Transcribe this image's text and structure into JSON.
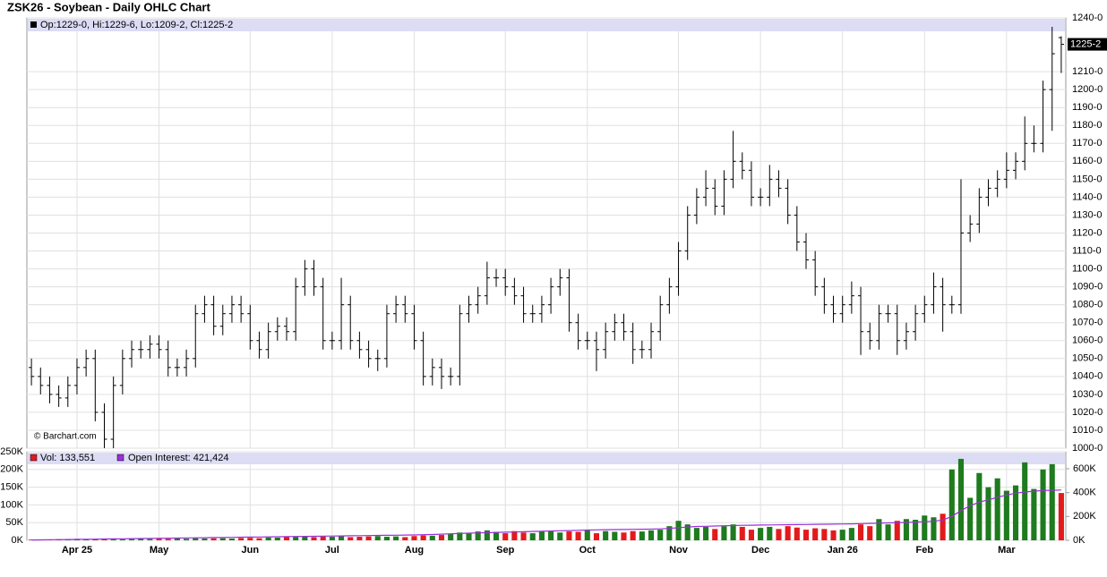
{
  "chart_data": {
    "type": "ohlc",
    "title": "ZSK26 - Soybean - Daily OHLC Chart",
    "info": "Op:1229-0, Hi:1229-6, Lo:1209-2, Cl:1225-2",
    "last_label": "1225-2",
    "watermark": "© Barchart.com",
    "xticks": [
      {
        "value": 5,
        "label": "Apr 25"
      },
      {
        "value": 14,
        "label": "May"
      },
      {
        "value": 24,
        "label": "Jun"
      },
      {
        "value": 33,
        "label": "Jul"
      },
      {
        "value": 42,
        "label": "Aug"
      },
      {
        "value": 52,
        "label": "Sep"
      },
      {
        "value": 61,
        "label": "Oct"
      },
      {
        "value": 71,
        "label": "Nov"
      },
      {
        "value": 80,
        "label": "Dec"
      },
      {
        "value": 89,
        "label": "Jan 26"
      },
      {
        "value": 98,
        "label": "Feb"
      },
      {
        "value": 107,
        "label": "Mar"
      }
    ],
    "price": {
      "color": "#000000",
      "ylim": [
        1000,
        1240
      ],
      "yticks": [
        {
          "value": 1000,
          "label": "1000-0"
        },
        {
          "value": 1010,
          "label": "1010-0"
        },
        {
          "value": 1020,
          "label": "1020-0"
        },
        {
          "value": 1030,
          "label": "1030-0"
        },
        {
          "value": 1040,
          "label": "1040-0"
        },
        {
          "value": 1050,
          "label": "1050-0"
        },
        {
          "value": 1060,
          "label": "1060-0"
        },
        {
          "value": 1070,
          "label": "1070-0"
        },
        {
          "value": 1080,
          "label": "1080-0"
        },
        {
          "value": 1090,
          "label": "1090-0"
        },
        {
          "value": 1100,
          "label": "1100-0"
        },
        {
          "value": 1110,
          "label": "1110-0"
        },
        {
          "value": 1120,
          "label": "1120-0"
        },
        {
          "value": 1130,
          "label": "1130-0"
        },
        {
          "value": 1140,
          "label": "1140-0"
        },
        {
          "value": 1150,
          "label": "1150-0"
        },
        {
          "value": 1160,
          "label": "1160-0"
        },
        {
          "value": 1170,
          "label": "1170-0"
        },
        {
          "value": 1180,
          "label": "1180-0"
        },
        {
          "value": 1190,
          "label": "1190-0"
        },
        {
          "value": 1200,
          "label": "1200-0"
        },
        {
          "value": 1210,
          "label": "1210-0"
        },
        {
          "value": 1240,
          "label": "1240-0"
        }
      ],
      "open": [
        1045,
        1040,
        1035,
        1030,
        1028,
        1035,
        1045,
        1050,
        1020,
        1005,
        1035,
        1050,
        1055,
        1055,
        1058,
        1055,
        1045,
        1045,
        1050,
        1075,
        1080,
        1068,
        1075,
        1080,
        1075,
        1060,
        1055,
        1065,
        1068,
        1065,
        1090,
        1100,
        1090,
        1060,
        1060,
        1080,
        1060,
        1055,
        1050,
        1050,
        1075,
        1080,
        1075,
        1060,
        1040,
        1045,
        1040,
        1040,
        1075,
        1080,
        1085,
        1095,
        1095,
        1090,
        1085,
        1075,
        1075,
        1080,
        1090,
        1095,
        1070,
        1060,
        1060,
        1055,
        1065,
        1070,
        1065,
        1055,
        1055,
        1065,
        1080,
        1090,
        1110,
        1130,
        1140,
        1145,
        1135,
        1150,
        1160,
        1155,
        1140,
        1140,
        1150,
        1145,
        1130,
        1115,
        1105,
        1090,
        1080,
        1075,
        1080,
        1085,
        1065,
        1060,
        1075,
        1075,
        1060,
        1065,
        1075,
        1080,
        1090,
        1080,
        1080,
        1120,
        1125,
        1140,
        1145,
        1150,
        1155,
        1160,
        1170,
        1170,
        1200,
        1229
      ],
      "high": [
        1050,
        1045,
        1040,
        1035,
        1040,
        1050,
        1055,
        1055,
        1025,
        1040,
        1055,
        1060,
        1060,
        1063,
        1063,
        1060,
        1050,
        1055,
        1080,
        1085,
        1085,
        1080,
        1085,
        1085,
        1080,
        1065,
        1070,
        1073,
        1073,
        1095,
        1105,
        1105,
        1095,
        1065,
        1095,
        1085,
        1065,
        1060,
        1055,
        1080,
        1085,
        1085,
        1080,
        1065,
        1050,
        1050,
        1045,
        1080,
        1085,
        1090,
        1104,
        1100,
        1100,
        1095,
        1090,
        1080,
        1085,
        1095,
        1100,
        1100,
        1075,
        1065,
        1065,
        1070,
        1075,
        1075,
        1070,
        1060,
        1070,
        1085,
        1095,
        1115,
        1135,
        1145,
        1155,
        1150,
        1155,
        1177,
        1165,
        1160,
        1145,
        1158,
        1155,
        1150,
        1135,
        1120,
        1110,
        1095,
        1085,
        1085,
        1093,
        1090,
        1070,
        1080,
        1080,
        1080,
        1070,
        1080,
        1085,
        1098,
        1095,
        1085,
        1150,
        1130,
        1145,
        1150,
        1155,
        1165,
        1165,
        1185,
        1180,
        1205,
        1235,
        1229.75
      ],
      "low": [
        1035,
        1030,
        1025,
        1023,
        1023,
        1030,
        1040,
        1015,
        1000,
        1000,
        1030,
        1045,
        1050,
        1050,
        1050,
        1040,
        1040,
        1040,
        1045,
        1070,
        1063,
        1063,
        1070,
        1070,
        1055,
        1050,
        1050,
        1060,
        1060,
        1060,
        1085,
        1085,
        1055,
        1055,
        1055,
        1055,
        1050,
        1045,
        1043,
        1045,
        1070,
        1070,
        1055,
        1035,
        1035,
        1033,
        1035,
        1035,
        1070,
        1075,
        1080,
        1090,
        1085,
        1080,
        1070,
        1070,
        1070,
        1075,
        1085,
        1065,
        1055,
        1055,
        1043,
        1050,
        1060,
        1060,
        1047,
        1050,
        1050,
        1060,
        1075,
        1085,
        1105,
        1125,
        1135,
        1130,
        1130,
        1145,
        1150,
        1135,
        1135,
        1135,
        1140,
        1125,
        1110,
        1100,
        1085,
        1075,
        1070,
        1070,
        1075,
        1052,
        1055,
        1055,
        1070,
        1052,
        1055,
        1060,
        1070,
        1075,
        1065,
        1075,
        1075,
        1115,
        1120,
        1135,
        1140,
        1145,
        1150,
        1155,
        1165,
        1165,
        1177,
        1209.25
      ],
      "close": [
        1040,
        1035,
        1030,
        1028,
        1035,
        1045,
        1050,
        1020,
        1005,
        1035,
        1050,
        1055,
        1055,
        1058,
        1055,
        1045,
        1045,
        1050,
        1075,
        1080,
        1068,
        1075,
        1080,
        1075,
        1060,
        1055,
        1065,
        1068,
        1065,
        1090,
        1100,
        1090,
        1060,
        1060,
        1080,
        1060,
        1055,
        1050,
        1050,
        1075,
        1080,
        1075,
        1060,
        1040,
        1045,
        1040,
        1040,
        1075,
        1080,
        1085,
        1095,
        1095,
        1090,
        1085,
        1075,
        1075,
        1080,
        1090,
        1095,
        1070,
        1060,
        1060,
        1055,
        1065,
        1070,
        1065,
        1055,
        1055,
        1065,
        1080,
        1090,
        1110,
        1130,
        1140,
        1145,
        1135,
        1150,
        1160,
        1155,
        1140,
        1140,
        1150,
        1145,
        1130,
        1115,
        1105,
        1090,
        1080,
        1075,
        1080,
        1085,
        1065,
        1060,
        1075,
        1075,
        1060,
        1065,
        1075,
        1080,
        1090,
        1080,
        1080,
        1120,
        1125,
        1140,
        1145,
        1150,
        1155,
        1160,
        1170,
        1170,
        1200,
        1220,
        1225.25
      ]
    },
    "volume": {
      "name": "Vol: 133,551",
      "legend_color": "#e31a1c",
      "up_color": "#1e7b1e",
      "down_color": "#e31a1c",
      "ylim": [
        0,
        250000
      ],
      "yticks": [
        {
          "value": 0,
          "label": "0K"
        },
        {
          "value": 50000,
          "label": "50K"
        },
        {
          "value": 100000,
          "label": "100K"
        },
        {
          "value": 150000,
          "label": "150K"
        },
        {
          "value": 200000,
          "label": "200K"
        },
        {
          "value": 250000,
          "label": "250K"
        }
      ],
      "values": [
        2000,
        2500,
        2000,
        3000,
        2500,
        3000,
        3500,
        3000,
        4000,
        3500,
        3000,
        3500,
        4000,
        3500,
        4500,
        4000,
        5000,
        4500,
        6000,
        5000,
        5500,
        6000,
        5000,
        6500,
        7000,
        6000,
        8000,
        7500,
        9000,
        10000,
        12000,
        9000,
        11000,
        10000,
        12000,
        9000,
        10000,
        11000,
        12000,
        10000,
        11000,
        9000,
        12000,
        14000,
        13000,
        15000,
        18000,
        22000,
        20000,
        25000,
        28000,
        24000,
        20000,
        26000,
        22000,
        20000,
        24000,
        26000,
        22000,
        25000,
        24000,
        28000,
        20000,
        26000,
        24000,
        22000,
        26000,
        25000,
        28000,
        30000,
        40000,
        55000,
        45000,
        35000,
        38000,
        32000,
        40000,
        45000,
        38000,
        30000,
        35000,
        38000,
        32000,
        40000,
        36000,
        30000,
        34000,
        32000,
        28000,
        30000,
        35000,
        45000,
        40000,
        60000,
        45000,
        55000,
        60000,
        58000,
        70000,
        65000,
        75000,
        200000,
        230000,
        120000,
        190000,
        150000,
        175000,
        140000,
        155000,
        220000,
        145000,
        200000,
        215000,
        133551
      ]
    },
    "open_interest": {
      "name": "Open Interest: 421,424",
      "color": "#9b30d9",
      "y2lim": [
        0,
        742500
      ],
      "y2ticks": [
        {
          "value": 0,
          "label": "0K"
        },
        {
          "value": 200000,
          "label": "200K"
        },
        {
          "value": 400000,
          "label": "400K"
        },
        {
          "value": 600000,
          "label": "600K"
        }
      ],
      "values": [
        3000,
        4000,
        5000,
        6000,
        7000,
        8000,
        9000,
        10000,
        11000,
        12000,
        13000,
        14000,
        15000,
        16000,
        17000,
        18000,
        19000,
        20000,
        21000,
        22000,
        23000,
        24000,
        25000,
        26000,
        27000,
        28000,
        29000,
        30000,
        31000,
        32000,
        33000,
        34000,
        35000,
        36000,
        37000,
        38000,
        39000,
        40000,
        41000,
        42000,
        43000,
        44000,
        45000,
        47000,
        49000,
        52000,
        55000,
        58000,
        60000,
        62000,
        64000,
        66000,
        68000,
        70000,
        72000,
        74000,
        76000,
        78000,
        80000,
        82000,
        84000,
        86000,
        88000,
        89000,
        90000,
        91000,
        92000,
        93000,
        94000,
        96000,
        100000,
        106000,
        112000,
        116000,
        118000,
        120000,
        122000,
        124000,
        126000,
        127000,
        128000,
        129000,
        130000,
        131000,
        132000,
        133000,
        134000,
        135000,
        136000,
        137000,
        138000,
        140000,
        142000,
        144000,
        146000,
        148000,
        150000,
        153000,
        156000,
        160000,
        170000,
        200000,
        250000,
        290000,
        320000,
        340000,
        360000,
        380000,
        395000,
        405000,
        412000,
        418000,
        420000,
        421424
      ]
    }
  }
}
